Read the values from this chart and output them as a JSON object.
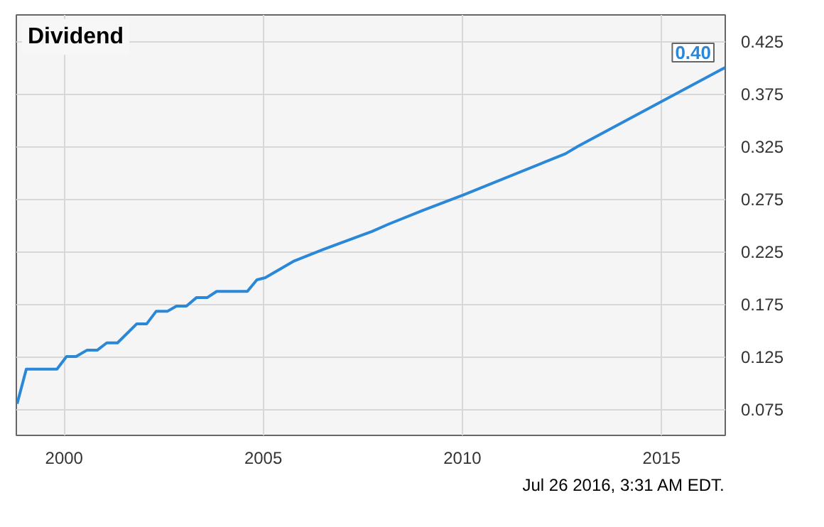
{
  "chart_data": {
    "type": "line",
    "title": "Dividend",
    "x": [
      1998.82,
      1999.05,
      1999.82,
      2000.06,
      2000.3,
      2000.57,
      2000.83,
      2001.07,
      2001.34,
      2001.82,
      2002.07,
      2002.31,
      2002.59,
      2002.82,
      2003.07,
      2003.32,
      2003.59,
      2003.83,
      2004.6,
      2004.84,
      2005.05,
      2005.78,
      2006.51,
      2007.73,
      2008.15,
      2009.0,
      2010.04,
      2012.59,
      2012.9,
      2016.6
    ],
    "series": [
      {
        "color": "#2b88d8",
        "values": [
          0.08,
          0.113,
          0.113,
          0.125,
          0.125,
          0.131,
          0.131,
          0.138,
          0.138,
          0.156,
          0.156,
          0.168,
          0.168,
          0.173,
          0.173,
          0.181,
          0.181,
          0.187,
          0.187,
          0.198,
          0.2,
          0.216,
          0.227,
          0.244,
          0.251,
          0.264,
          0.279,
          0.318,
          0.325,
          0.4
        ],
        "value_labels": [
          null,
          null,
          null,
          null,
          null,
          null,
          null,
          null,
          null,
          null,
          null,
          null,
          null,
          null,
          null,
          null,
          null,
          null,
          null,
          null,
          null,
          null,
          null,
          null,
          null,
          null,
          null,
          null,
          null,
          "0.40"
        ]
      }
    ],
    "xlim": [
      1998.8,
      2016.6
    ],
    "ylim": [
      0.05,
      0.45
    ],
    "xticks": [
      2000,
      2005,
      2010,
      2015
    ],
    "yticks": [
      0.075,
      0.125,
      0.175,
      0.225,
      0.275,
      0.325,
      0.375,
      0.425
    ],
    "grid": true,
    "annotations": [
      "Jul 26 2016, 3:31 AM EDT."
    ]
  }
}
